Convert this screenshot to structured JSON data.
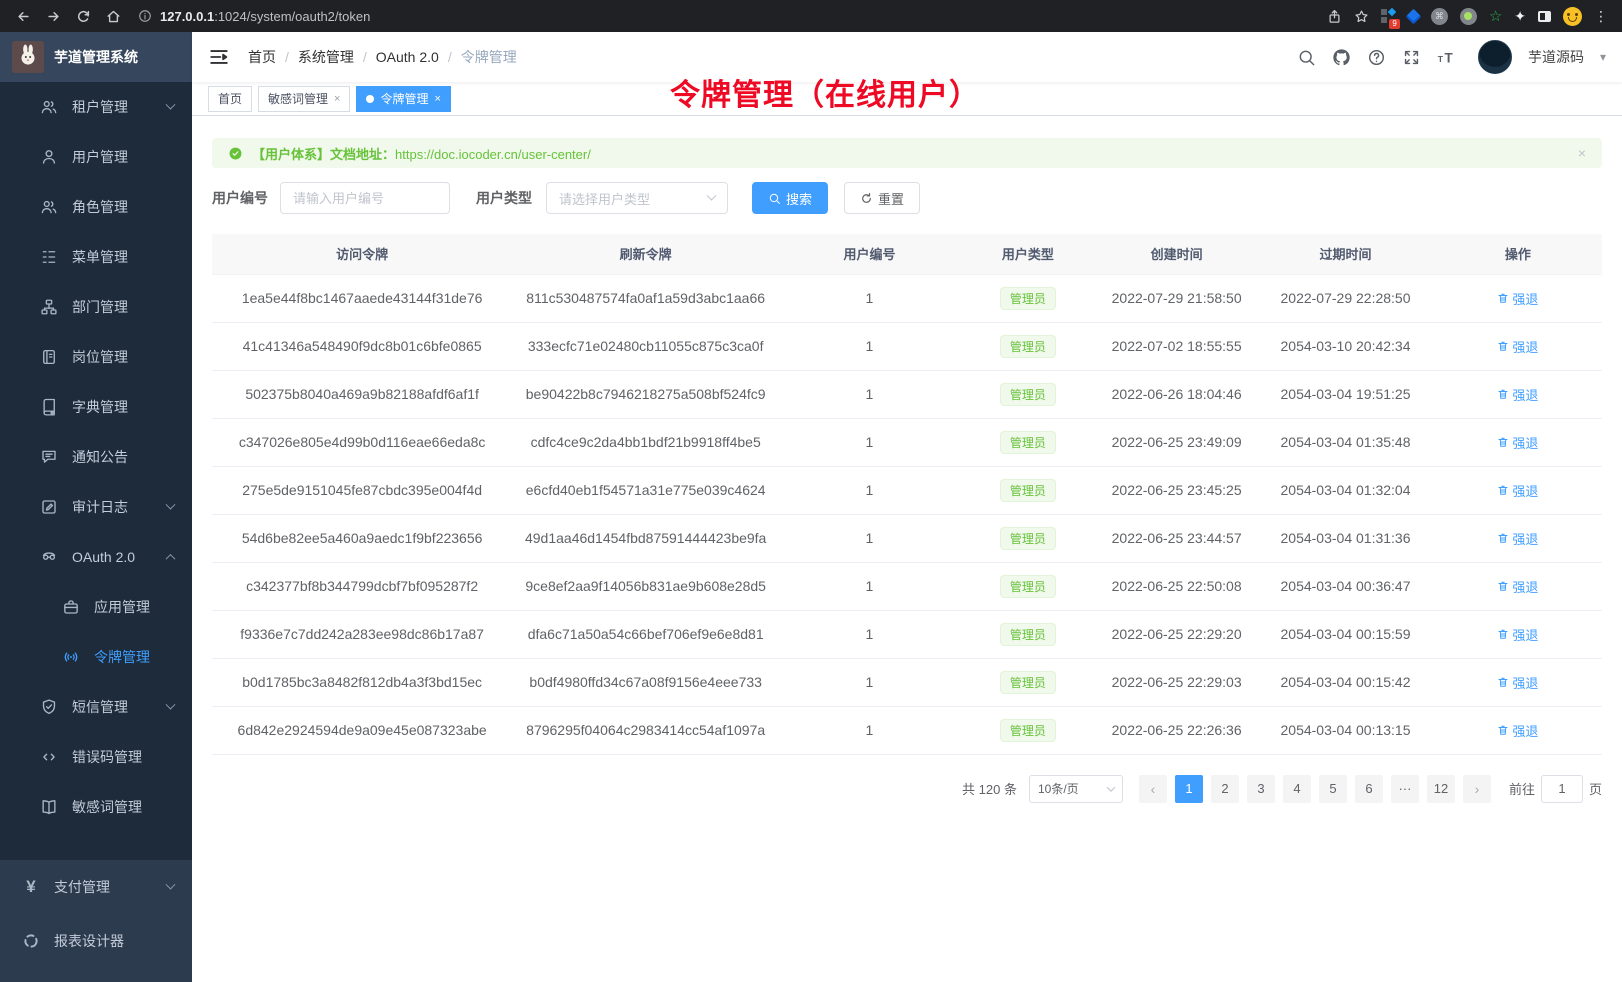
{
  "browser": {
    "url_host": "127.0.0.1",
    "url_path": ":1024/system/oauth2/token",
    "ext_badge": "9"
  },
  "sidebar": {
    "app_title": "芋道管理系统",
    "items": [
      {
        "name": "tenant-management",
        "icon": "tenant-icon",
        "label": "租户管理",
        "arrow": "down"
      },
      {
        "name": "user-management",
        "icon": "user-icon",
        "label": "用户管理"
      },
      {
        "name": "role-management",
        "icon": "role-icon",
        "label": "角色管理"
      },
      {
        "name": "menu-management",
        "icon": "menu-icon",
        "label": "菜单管理"
      },
      {
        "name": "dept-management",
        "icon": "org-icon",
        "label": "部门管理"
      },
      {
        "name": "post-management",
        "icon": "badge-icon",
        "label": "岗位管理"
      },
      {
        "name": "dict-management",
        "icon": "dict-icon",
        "label": "字典管理"
      },
      {
        "name": "notice-announcement",
        "icon": "chat-icon",
        "label": "通知公告"
      },
      {
        "name": "audit-log",
        "icon": "edit-square-icon",
        "label": "审计日志",
        "arrow": "down"
      },
      {
        "name": "oauth2",
        "icon": "robot-icon",
        "label": "OAuth 2.0",
        "arrow": "up"
      },
      {
        "name": "app-management",
        "icon": "briefcase-icon",
        "label": "应用管理",
        "child": true
      },
      {
        "name": "token-management",
        "icon": "signal-icon",
        "label": "令牌管理",
        "child": true,
        "active": true
      },
      {
        "name": "sms-management",
        "icon": "shield-check-icon",
        "label": "短信管理",
        "arrow": "down"
      },
      {
        "name": "error-code-management",
        "icon": "code-icon",
        "label": "错误码管理"
      },
      {
        "name": "sensitive-word-management",
        "icon": "open-book-icon",
        "label": "敏感词管理"
      }
    ],
    "bottom_items": [
      {
        "name": "payment-management",
        "icon": "yen-icon",
        "label": "支付管理",
        "arrow": "down"
      },
      {
        "name": "report-designer",
        "icon": "report-icon",
        "label": "报表设计器"
      }
    ]
  },
  "header": {
    "breadcrumbs": [
      "首页",
      "系统管理",
      "OAuth 2.0",
      "令牌管理"
    ],
    "username": "芋道源码"
  },
  "tabs": [
    {
      "name": "home",
      "label": "首页"
    },
    {
      "name": "sensitive-word",
      "label": "敏感词管理",
      "closable": true
    },
    {
      "name": "token",
      "label": "令牌管理",
      "closable": true,
      "active": true
    }
  ],
  "annotation": "令牌管理（在线用户）",
  "alert": {
    "text": "【用户体系】文档地址：",
    "link": "https://doc.iocoder.cn/user-center/"
  },
  "filters": {
    "user_id_label": "用户编号",
    "user_id_placeholder": "请输入用户编号",
    "user_type_label": "用户类型",
    "user_type_placeholder": "请选择用户类型",
    "search_label": "搜索",
    "reset_label": "重置"
  },
  "table": {
    "columns": [
      "访问令牌",
      "刷新令牌",
      "用户编号",
      "用户类型",
      "创建时间",
      "过期时间",
      "操作"
    ],
    "rows": [
      {
        "access": "1ea5e44f8bc1467aaede43144f31de76",
        "refresh": "811c530487574fa0af1a59d3abc1aa66",
        "user_id": "1",
        "user_type": "管理员",
        "created": "2022-07-29 21:58:50",
        "expires": "2022-07-29 22:28:50",
        "action": "强退"
      },
      {
        "access": "41c41346a548490f9dc8b01c6bfe0865",
        "refresh": "333ecfc71e02480cb11055c875c3ca0f",
        "user_id": "1",
        "user_type": "管理员",
        "created": "2022-07-02 18:55:55",
        "expires": "2054-03-10 20:42:34",
        "action": "强退"
      },
      {
        "access": "502375b8040a469a9b82188afdf6af1f",
        "refresh": "be90422b8c7946218275a508bf524fc9",
        "user_id": "1",
        "user_type": "管理员",
        "created": "2022-06-26 18:04:46",
        "expires": "2054-03-04 19:51:25",
        "action": "强退"
      },
      {
        "access": "c347026e805e4d99b0d116eae66eda8c",
        "refresh": "cdfc4ce9c2da4bb1bdf21b9918ff4be5",
        "user_id": "1",
        "user_type": "管理员",
        "created": "2022-06-25 23:49:09",
        "expires": "2054-03-04 01:35:48",
        "action": "强退"
      },
      {
        "access": "275e5de9151045fe87cbdc395e004f4d",
        "refresh": "e6cfd40eb1f54571a31e775e039c4624",
        "user_id": "1",
        "user_type": "管理员",
        "created": "2022-06-25 23:45:25",
        "expires": "2054-03-04 01:32:04",
        "action": "强退"
      },
      {
        "access": "54d6be82ee5a460a9aedc1f9bf223656",
        "refresh": "49d1aa46d1454fbd87591444423be9fa",
        "user_id": "1",
        "user_type": "管理员",
        "created": "2022-06-25 23:44:57",
        "expires": "2054-03-04 01:31:36",
        "action": "强退"
      },
      {
        "access": "c342377bf8b344799dcbf7bf095287f2",
        "refresh": "9ce8ef2aa9f14056b831ae9b608e28d5",
        "user_id": "1",
        "user_type": "管理员",
        "created": "2022-06-25 22:50:08",
        "expires": "2054-03-04 00:36:47",
        "action": "强退"
      },
      {
        "access": "f9336e7c7dd242a283ee98dc86b17a87",
        "refresh": "dfa6c71a50a54c66bef706ef9e6e8d81",
        "user_id": "1",
        "user_type": "管理员",
        "created": "2022-06-25 22:29:20",
        "expires": "2054-03-04 00:15:59",
        "action": "强退"
      },
      {
        "access": "b0d1785bc3a8482f812db4a3f3bd15ec",
        "refresh": "b0df4980ffd34c67a08f9156e4eee733",
        "user_id": "1",
        "user_type": "管理员",
        "created": "2022-06-25 22:29:03",
        "expires": "2054-03-04 00:15:42",
        "action": "强退"
      },
      {
        "access": "6d842e2924594de9a09e45e087323abe",
        "refresh": "8796295f04064c2983414cc54af1097a",
        "user_id": "1",
        "user_type": "管理员",
        "created": "2022-06-25 22:26:36",
        "expires": "2054-03-04 00:13:15",
        "action": "强退"
      }
    ]
  },
  "pagination": {
    "total": "共 120 条",
    "page_size": "10条/页",
    "pages": [
      "1",
      "2",
      "3",
      "4",
      "5",
      "6",
      "...",
      "12"
    ],
    "active_page": "1",
    "goto_label": "前往",
    "goto_value": "1",
    "goto_suffix": "页"
  },
  "colors": {
    "primary": "#409eff",
    "success": "#67c23a",
    "annotation_red": "#ee0a24",
    "sidebar_bg": "#1d2b3a"
  }
}
